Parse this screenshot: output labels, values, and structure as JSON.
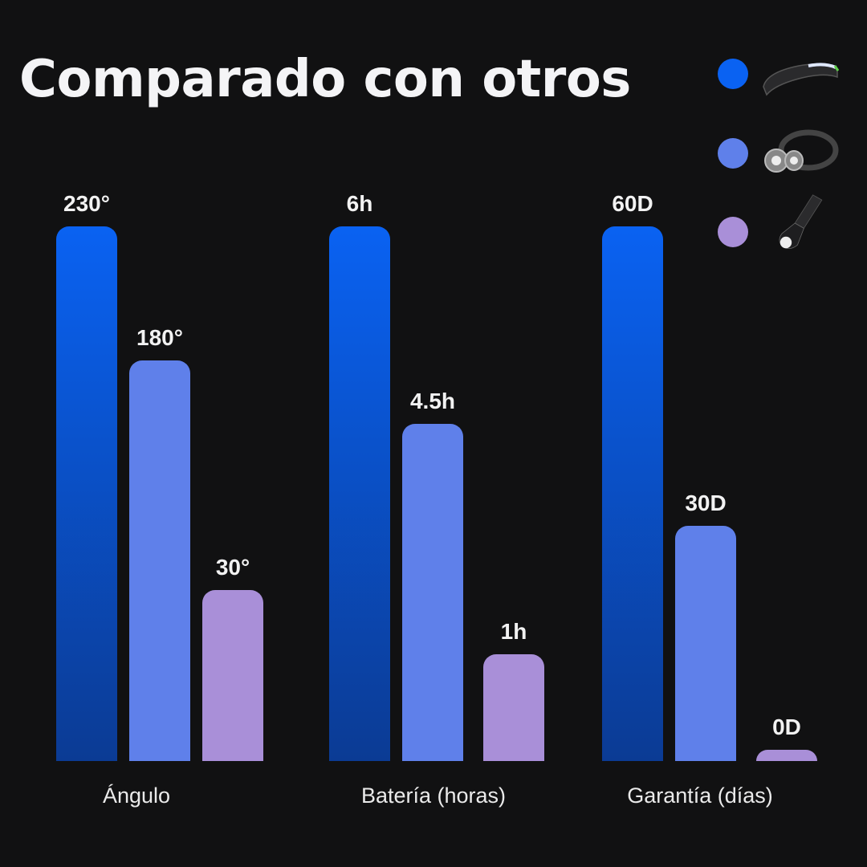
{
  "chart_data": {
    "type": "bar",
    "title": "Comparado con otros",
    "categories": [
      "Ángulo",
      "Batería (horas)",
      "Garantía (días)"
    ],
    "series": [
      {
        "name": "headlamp-led-band",
        "color": "#0a62f2",
        "values": [
          230,
          6,
          60
        ],
        "labels": [
          "230°",
          "6h",
          "60D"
        ],
        "levels": [
          1,
          1,
          1
        ]
      },
      {
        "name": "headlamp-classic",
        "color": "#5f80ea",
        "values": [
          180,
          4.5,
          30
        ],
        "labels": [
          "180°",
          "4.5h",
          "30D"
        ],
        "levels": [
          0.75,
          0.63,
          0.44
        ]
      },
      {
        "name": "flashlight",
        "color": "#a98fd8",
        "values": [
          30,
          1,
          0
        ],
        "labels": [
          "30°",
          "1h",
          "0D"
        ],
        "levels": [
          0.32,
          0.2,
          0.02
        ]
      }
    ],
    "legend_position": "top-right",
    "grid": false,
    "xlabel": "",
    "ylabel": ""
  }
}
